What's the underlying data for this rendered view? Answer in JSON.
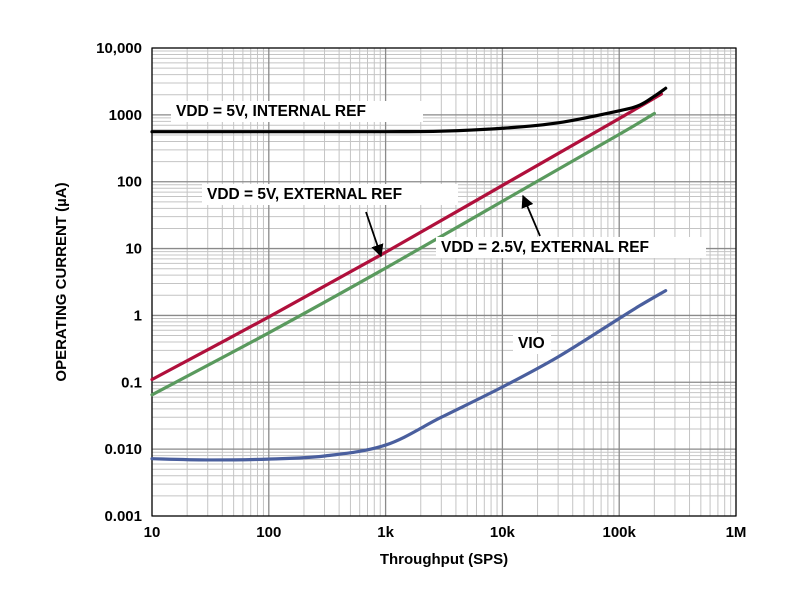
{
  "chart_data": {
    "type": "line",
    "title": "",
    "xlabel": "Throughput (SPS)",
    "ylabel": "OPERATING CURRENT (µA)",
    "x_scale": "log",
    "y_scale": "log",
    "xlim": [
      10,
      1000000
    ],
    "ylim": [
      0.001,
      10000
    ],
    "grid": true,
    "legend": "none",
    "x_ticks": [
      {
        "value": 10,
        "label": "10"
      },
      {
        "value": 100,
        "label": "100"
      },
      {
        "value": 1000,
        "label": "1k"
      },
      {
        "value": 10000,
        "label": "10k"
      },
      {
        "value": 100000,
        "label": "100k"
      },
      {
        "value": 1000000,
        "label": "1M"
      }
    ],
    "y_ticks": [
      {
        "value": 10000,
        "label": "10,000"
      },
      {
        "value": 1000,
        "label": "1000"
      },
      {
        "value": 100,
        "label": "100"
      },
      {
        "value": 10,
        "label": "10"
      },
      {
        "value": 1,
        "label": "1"
      },
      {
        "value": 0.1,
        "label": "0.1"
      },
      {
        "value": 0.01,
        "label": "0.010"
      },
      {
        "value": 0.001,
        "label": "0.001"
      }
    ],
    "series": [
      {
        "name": "VDD = 5V, INTERNAL REF",
        "color": "#000000",
        "points": [
          [
            10,
            560
          ],
          [
            100,
            560
          ],
          [
            1000,
            560
          ],
          [
            3000,
            570
          ],
          [
            10000,
            630
          ],
          [
            30000,
            760
          ],
          [
            100000,
            1150
          ],
          [
            150000,
            1400
          ],
          [
            200000,
            1900
          ],
          [
            250000,
            2500
          ]
        ]
      },
      {
        "name": "VDD = 5V, EXTERNAL REF",
        "color": "#b0103c",
        "points": [
          [
            10,
            0.11
          ],
          [
            100,
            0.95
          ],
          [
            1000,
            8.8
          ],
          [
            10000,
            88
          ],
          [
            100000,
            880
          ],
          [
            230000,
            2050
          ]
        ]
      },
      {
        "name": "VDD = 2.5V, EXTERNAL REF",
        "color": "#5a9a5e",
        "points": [
          [
            10,
            0.065
          ],
          [
            100,
            0.55
          ],
          [
            1000,
            5.1
          ],
          [
            10000,
            51
          ],
          [
            100000,
            510
          ],
          [
            200000,
            1050
          ]
        ]
      },
      {
        "name": "VIO",
        "color": "#4a5f9e",
        "points": [
          [
            10,
            0.0072
          ],
          [
            30,
            0.0069
          ],
          [
            100,
            0.0071
          ],
          [
            300,
            0.0079
          ],
          [
            1000,
            0.0115
          ],
          [
            3000,
            0.03
          ],
          [
            10000,
            0.085
          ],
          [
            30000,
            0.24
          ],
          [
            100000,
            0.9
          ],
          [
            150000,
            1.4
          ],
          [
            250000,
            2.35
          ]
        ]
      }
    ],
    "annotations": [
      {
        "text": "VDD = 5V, INTERNAL REF",
        "series": 0
      },
      {
        "text": "VDD = 5V, EXTERNAL REF",
        "series": 1
      },
      {
        "text": "VDD = 2.5V, EXTERNAL REF",
        "series": 2
      },
      {
        "text": "VIO",
        "series": 3
      }
    ]
  }
}
